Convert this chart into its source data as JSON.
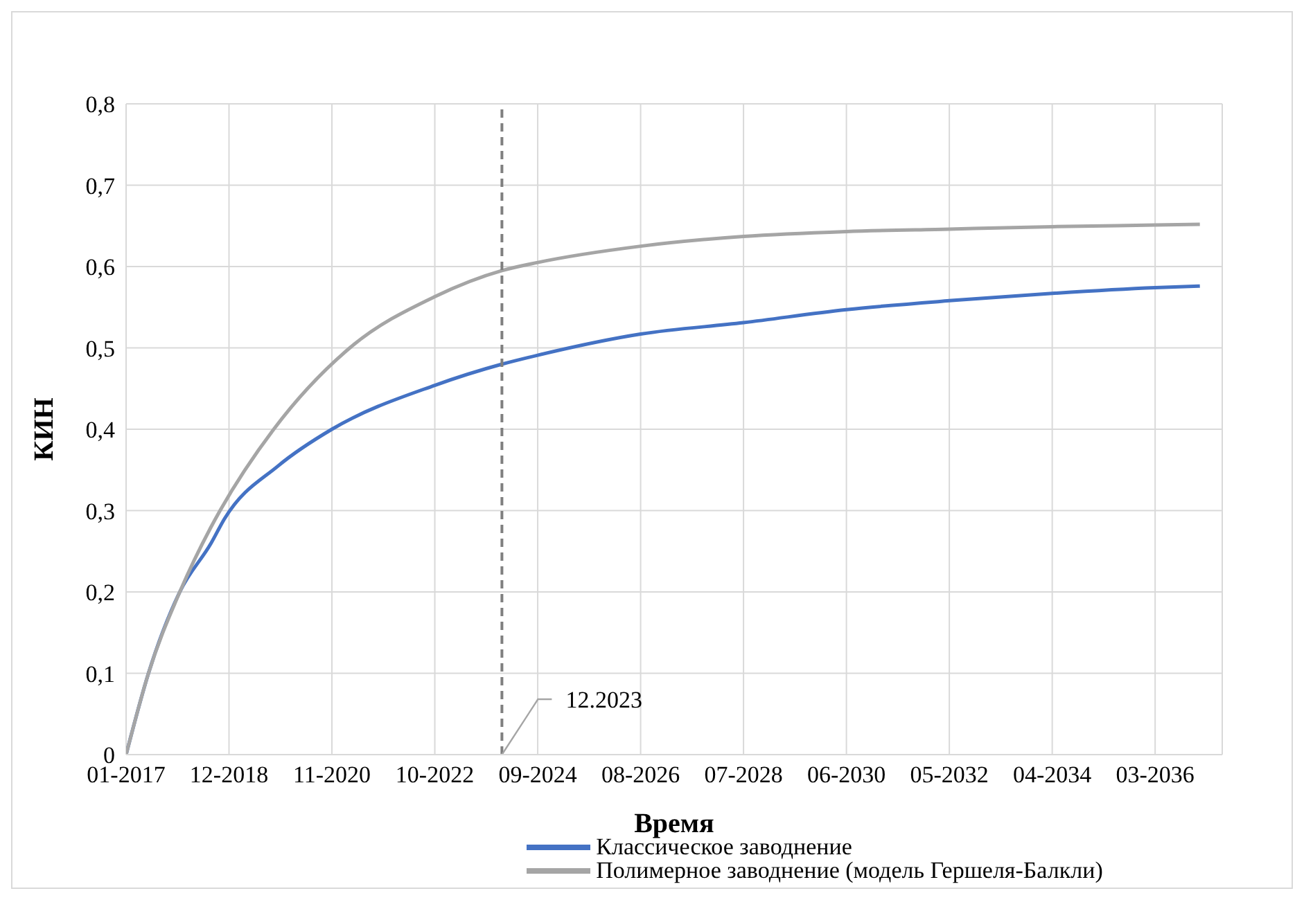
{
  "chart_data": {
    "type": "line",
    "xlabel": "Время",
    "ylabel": "КИН",
    "xlim": [
      "2017-01",
      "2037-06"
    ],
    "xticks": [
      {
        "value": "2017-01",
        "label": "01-2017"
      },
      {
        "value": "2018-12",
        "label": "12-2018"
      },
      {
        "value": "2020-11",
        "label": "11-2020"
      },
      {
        "value": "2022-10",
        "label": "10-2022"
      },
      {
        "value": "2024-09",
        "label": "09-2024"
      },
      {
        "value": "2026-08",
        "label": "08-2026"
      },
      {
        "value": "2028-07",
        "label": "07-2028"
      },
      {
        "value": "2030-06",
        "label": "06-2030"
      },
      {
        "value": "2032-05",
        "label": "05-2032"
      },
      {
        "value": "2034-04",
        "label": "04-2034"
      },
      {
        "value": "2036-03",
        "label": "03-2036"
      }
    ],
    "ylim": [
      0,
      0.8
    ],
    "yticks": [
      {
        "value": 0,
        "label": "0"
      },
      {
        "value": 0.1,
        "label": "0,1"
      },
      {
        "value": 0.2,
        "label": "0,2"
      },
      {
        "value": 0.3,
        "label": "0,3"
      },
      {
        "value": 0.4,
        "label": "0,4"
      },
      {
        "value": 0.5,
        "label": "0,5"
      },
      {
        "value": 0.6,
        "label": "0,6"
      },
      {
        "value": 0.7,
        "label": "0,7"
      },
      {
        "value": 0.8,
        "label": "0,8"
      }
    ],
    "grid": true,
    "legend": "bottom",
    "marker": "none",
    "ref_lines": [
      {
        "axis": "x",
        "value": "2024-01",
        "label": "12.2023",
        "color": "#7f7f7f",
        "line_style": "dashed"
      }
    ],
    "series": [
      {
        "name": "Классическое заводнение",
        "color": "#4472c4",
        "x": [
          "2017-01",
          "2017-06",
          "2018-01",
          "2018-08",
          "2018-11",
          "2019-11",
          "2020-11",
          "2022-10",
          "2024-01",
          "2024-09",
          "2026-08",
          "2028-07",
          "2030-06",
          "2032-05",
          "2034-04",
          "2036-03",
          "2037-01"
        ],
        "values": [
          0,
          0.1,
          0.2,
          0.26,
          0.29,
          0.355,
          0.4,
          0.454,
          0.48,
          0.491,
          0.517,
          0.531,
          0.547,
          0.558,
          0.567,
          0.574,
          0.576
        ]
      },
      {
        "name": "Полимерное заводнение (модель Гершеля-Балкли)",
        "color": "#a5a5a5",
        "x": [
          "2017-01",
          "2017-06",
          "2018-01",
          "2018-08",
          "2018-10",
          "2019-10",
          "2021-03",
          "2022-10",
          "2024-01",
          "2024-09",
          "2026-08",
          "2028-07",
          "2030-06",
          "2032-05",
          "2034-04",
          "2036-03",
          "2037-01"
        ],
        "values": [
          0,
          0.1,
          0.2,
          0.28,
          0.3,
          0.4,
          0.5,
          0.563,
          0.595,
          0.605,
          0.625,
          0.637,
          0.643,
          0.646,
          0.649,
          0.651,
          0.652
        ]
      }
    ]
  }
}
